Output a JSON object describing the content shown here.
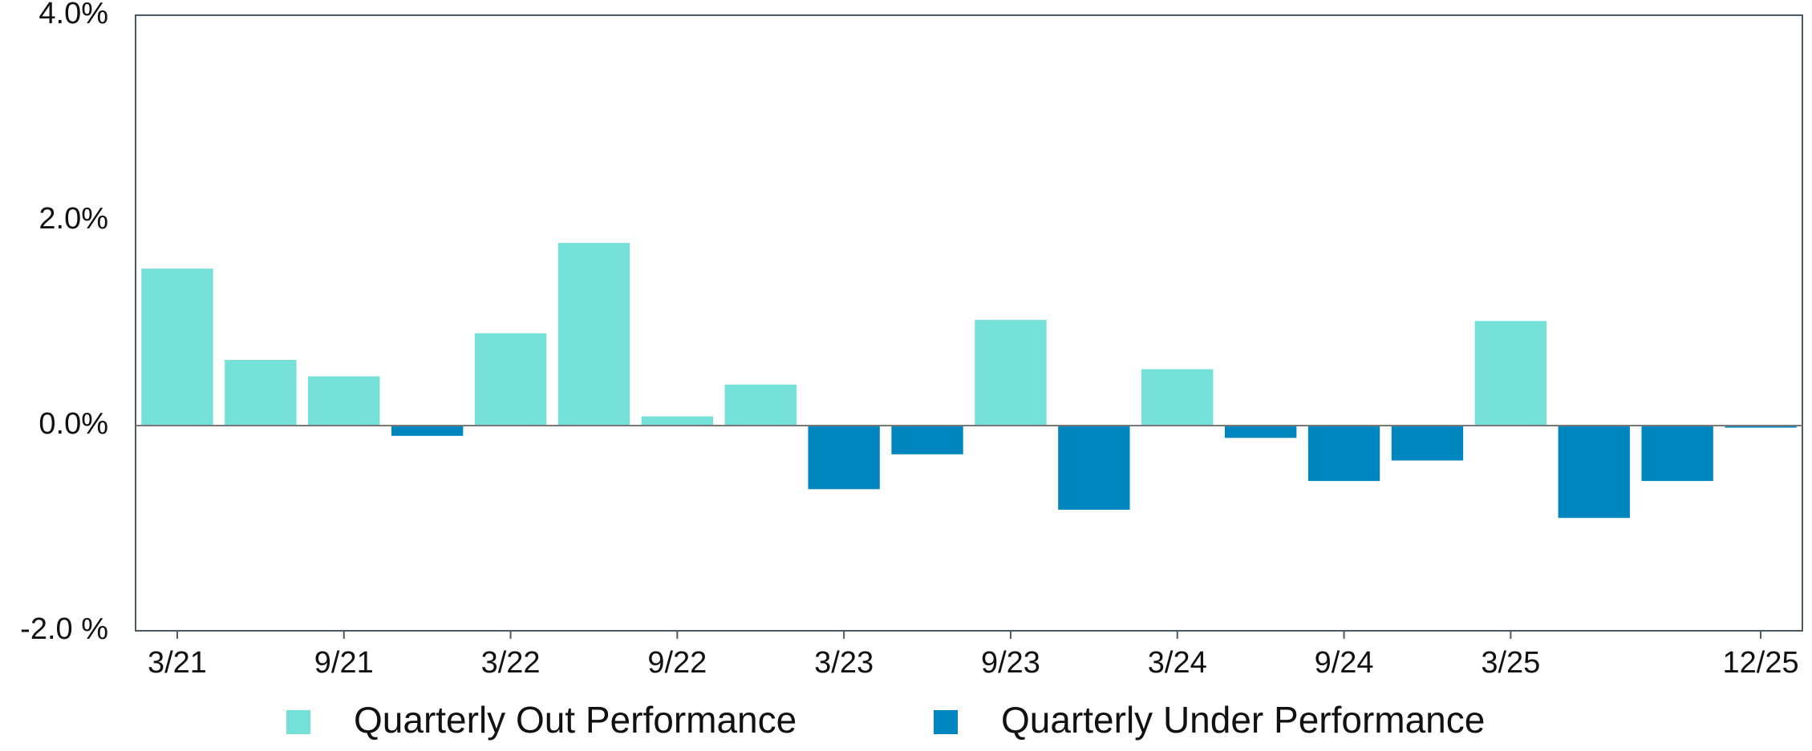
{
  "chart_data": {
    "type": "bar",
    "categories": [
      "3/21",
      null,
      "9/21",
      null,
      "3/22",
      null,
      "9/22",
      null,
      "3/23",
      null,
      "9/23",
      null,
      "3/24",
      null,
      "9/24",
      null,
      "3/25",
      null,
      null,
      "12/25"
    ],
    "series": [
      {
        "name": "Quarterly Out Performance",
        "color": "#74e0d8",
        "values": [
          1.53,
          0.64,
          0.48,
          null,
          0.9,
          1.78,
          0.09,
          0.4,
          null,
          null,
          1.03,
          null,
          0.55,
          null,
          null,
          null,
          1.02,
          null,
          null,
          null
        ]
      },
      {
        "name": "Quarterly Under Performance",
        "color": "#0086bf",
        "values": [
          null,
          null,
          null,
          -0.1,
          null,
          null,
          null,
          null,
          -0.62,
          -0.28,
          null,
          -0.82,
          null,
          -0.12,
          -0.54,
          -0.34,
          null,
          -0.9,
          -0.54,
          -0.02
        ]
      }
    ],
    "ylim": [
      -2,
      4
    ],
    "yticks": [
      {
        "value": -2,
        "label": "-2.0 %"
      },
      {
        "value": 0,
        "label": "0.0%"
      },
      {
        "value": 2,
        "label": "2.0%"
      },
      {
        "value": 4,
        "label": "4.0%"
      }
    ],
    "grid": false
  }
}
